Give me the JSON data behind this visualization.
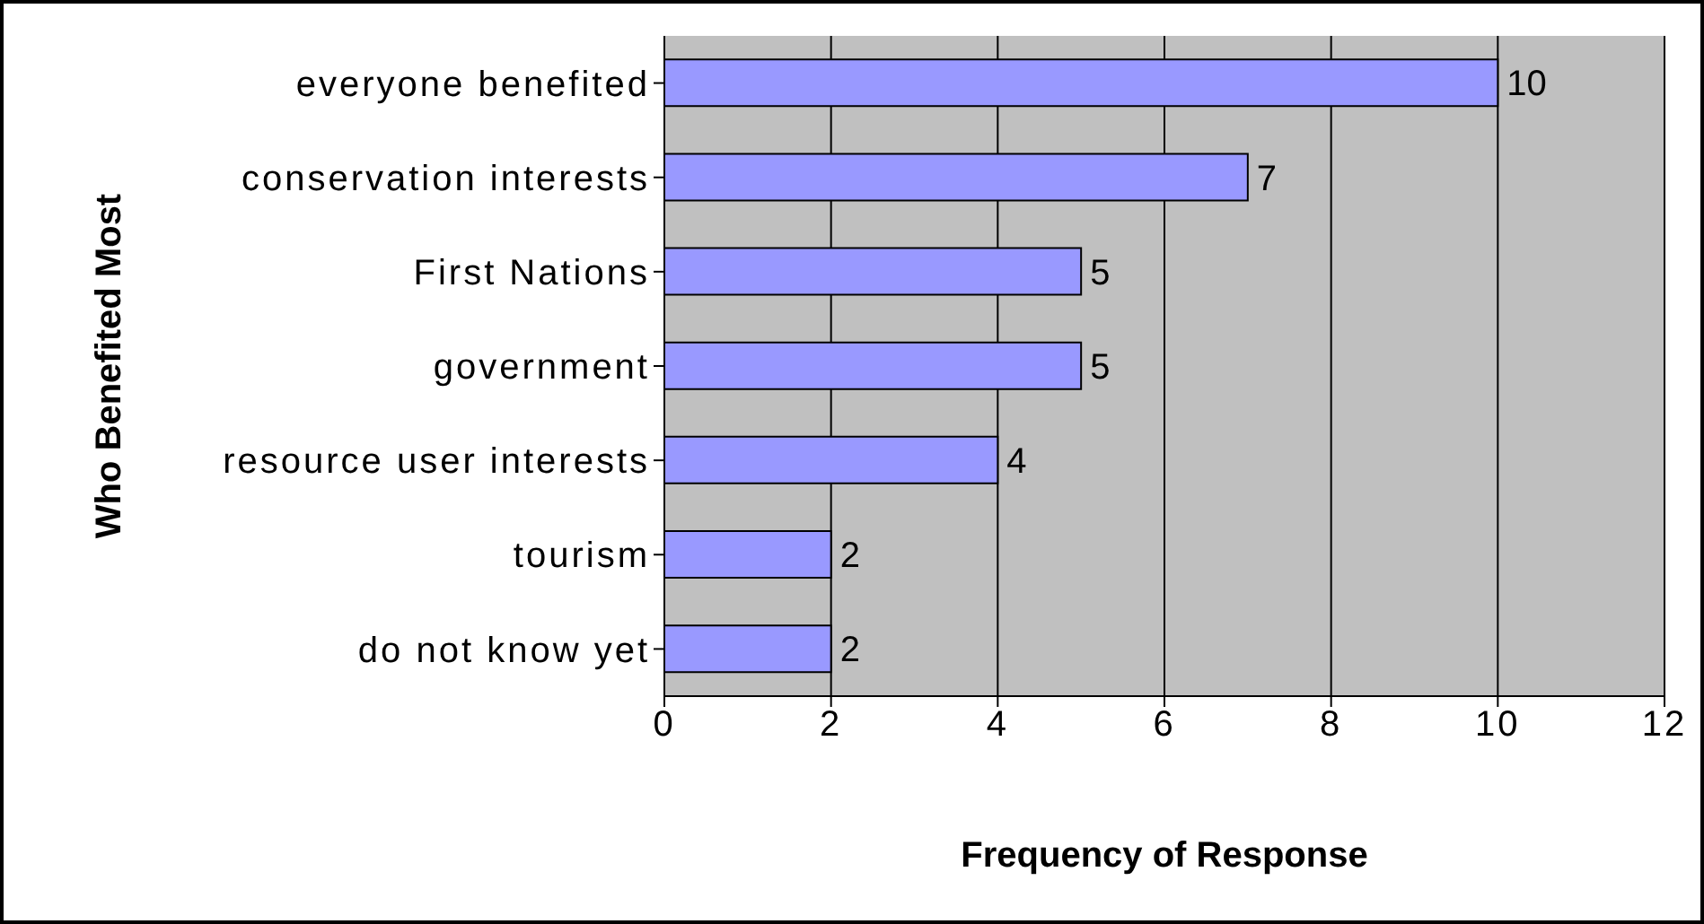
{
  "chart_data": {
    "type": "bar",
    "orientation": "horizontal",
    "xlabel": "Frequency of Response",
    "ylabel": "Who Benefited Most",
    "categories": [
      "everyone benefited",
      "conservation interests",
      "First Nations",
      "government",
      "resource user interests",
      "tourism",
      "do not know yet"
    ],
    "values": [
      10,
      7,
      5,
      5,
      4,
      2,
      2
    ],
    "color": "#9999ff",
    "xlim": [
      0,
      12
    ],
    "xticks": [
      0,
      2,
      4,
      6,
      8,
      10,
      12
    ],
    "grid": "x",
    "data_labels": true
  }
}
